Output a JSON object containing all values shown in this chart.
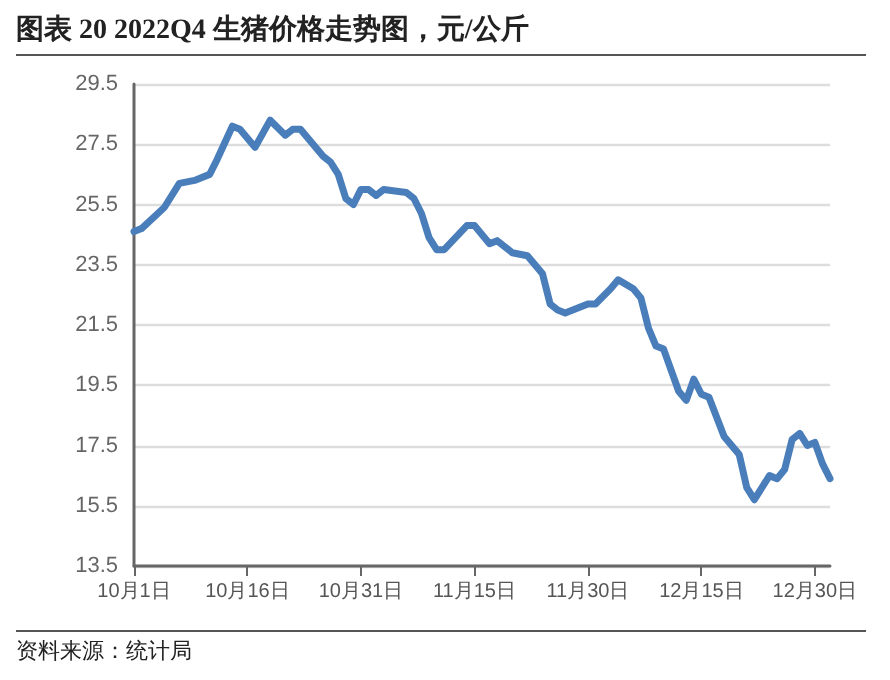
{
  "chart_data": {
    "type": "line",
    "title": "图表 20 2022Q4 生猪价格走势图，元/公斤",
    "annotations": [
      "资料来源：统计局"
    ],
    "x": [
      "2022-10-01",
      "2022-10-02",
      "2022-10-05",
      "2022-10-07",
      "2022-10-09",
      "2022-10-11",
      "2022-10-12",
      "2022-10-14",
      "2022-10-15",
      "2022-10-17",
      "2022-10-19",
      "2022-10-21",
      "2022-10-22",
      "2022-10-23",
      "2022-10-26",
      "2022-10-27",
      "2022-10-28",
      "2022-10-29",
      "2022-10-30",
      "2022-10-31",
      "2022-11-01",
      "2022-11-02",
      "2022-11-03",
      "2022-11-06",
      "2022-11-07",
      "2022-11-08",
      "2022-11-09",
      "2022-11-10",
      "2022-11-11",
      "2022-11-14",
      "2022-11-15",
      "2022-11-17",
      "2022-11-18",
      "2022-11-20",
      "2022-11-22",
      "2022-11-24",
      "2022-11-25",
      "2022-11-26",
      "2022-11-27",
      "2022-11-30",
      "2022-12-01",
      "2022-12-03",
      "2022-12-04",
      "2022-12-06",
      "2022-12-07",
      "2022-12-08",
      "2022-12-09",
      "2022-12-10",
      "2022-12-12",
      "2022-12-13",
      "2022-12-14",
      "2022-12-15",
      "2022-12-16",
      "2022-12-18",
      "2022-12-19",
      "2022-12-20",
      "2022-12-21",
      "2022-12-22",
      "2022-12-24",
      "2022-12-25",
      "2022-12-26",
      "2022-12-27",
      "2022-12-28",
      "2022-12-29",
      "2022-12-30",
      "2022-12-31",
      "2023-01-01"
    ],
    "series": [
      {
        "color": "#4a7ebb",
        "values": [
          24.6,
          24.7,
          25.4,
          26.2,
          26.3,
          26.5,
          27.0,
          28.1,
          28.0,
          27.4,
          28.3,
          27.8,
          28.0,
          28.0,
          27.1,
          26.9,
          26.5,
          25.7,
          25.5,
          26.0,
          26.0,
          25.8,
          26.0,
          25.9,
          25.7,
          25.2,
          24.4,
          24.0,
          24.0,
          24.8,
          24.8,
          24.2,
          24.3,
          23.9,
          23.8,
          23.2,
          22.2,
          22.0,
          21.9,
          22.2,
          22.2,
          22.7,
          23.0,
          22.7,
          22.4,
          21.4,
          20.8,
          20.7,
          19.3,
          19.0,
          19.7,
          19.2,
          19.1,
          17.8,
          17.5,
          17.2,
          16.1,
          15.7,
          16.5,
          16.4,
          16.7,
          17.7,
          17.9,
          17.5,
          17.6,
          16.9,
          16.4
        ]
      }
    ],
    "xlim": [
      "2022-10-01",
      "2023-01-01"
    ],
    "xticks": [
      {
        "value": "2022-10-01",
        "label": "10月1日"
      },
      {
        "value": "2022-10-16",
        "label": "10月16日"
      },
      {
        "value": "2022-10-31",
        "label": "10月31日"
      },
      {
        "value": "2022-11-15",
        "label": "11月15日"
      },
      {
        "value": "2022-11-30",
        "label": "11月30日"
      },
      {
        "value": "2022-12-15",
        "label": "12月15日"
      },
      {
        "value": "2022-12-30",
        "label": "12月30日"
      }
    ],
    "ylim": [
      13.5,
      29.5
    ],
    "yticks": [
      13.5,
      15.5,
      17.5,
      19.5,
      21.5,
      23.5,
      25.5,
      27.5,
      29.5
    ],
    "grid": "y",
    "marker": "none",
    "line_style": "solid"
  }
}
